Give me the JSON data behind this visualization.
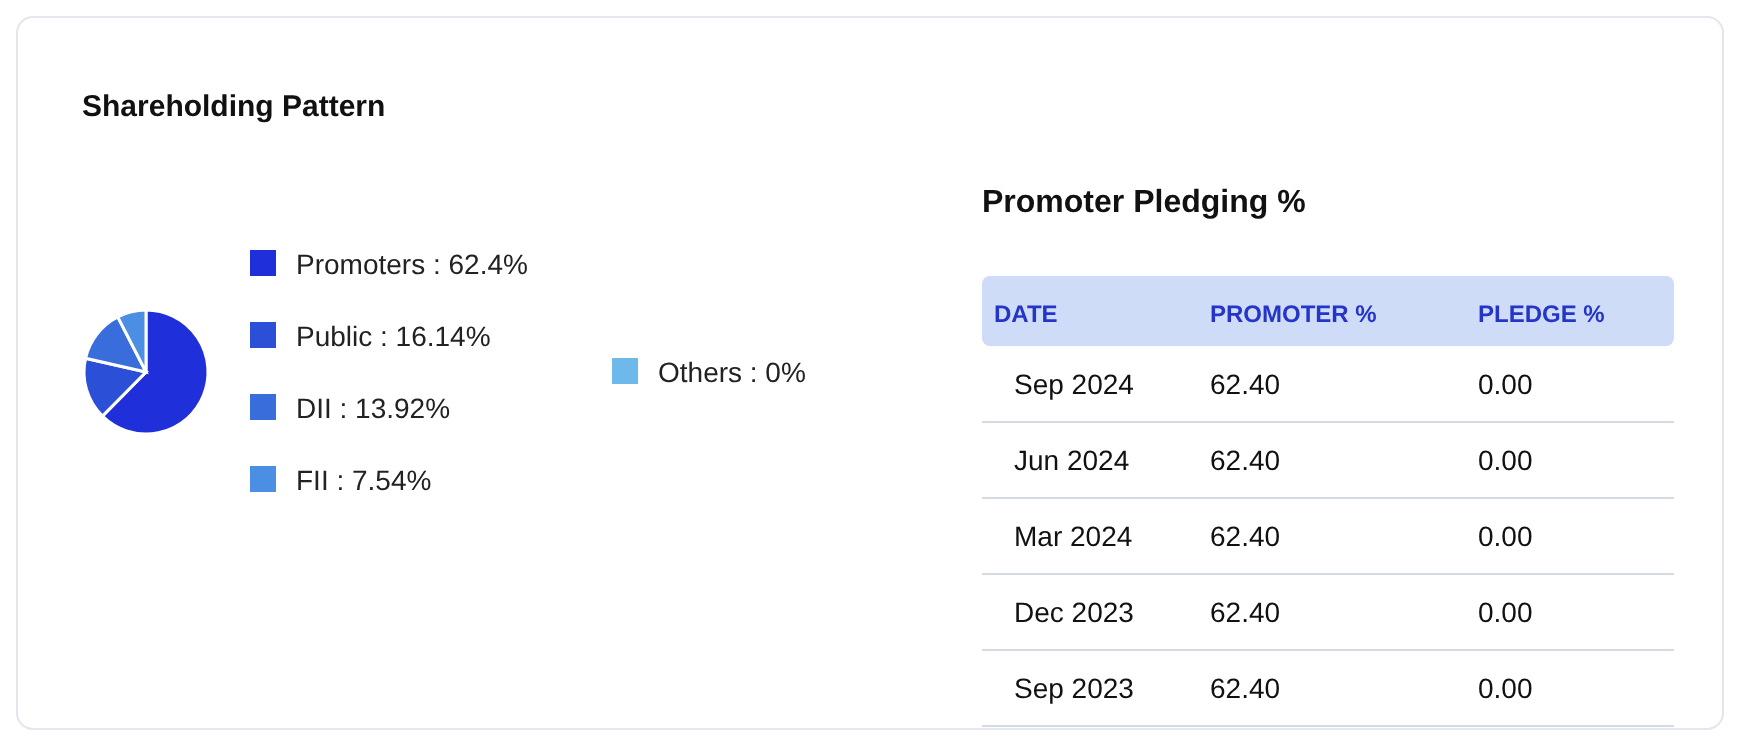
{
  "chart_data": [
    {
      "type": "pie",
      "title": "Shareholding Pattern",
      "categories": [
        "Promoters",
        "Public",
        "DII",
        "FII",
        "Others"
      ],
      "values": [
        62.4,
        16.14,
        13.92,
        7.54,
        0
      ],
      "value_labels": [
        "62.4%",
        "16.14%",
        "13.92%",
        "7.54%",
        "0%"
      ],
      "colors": [
        "#1f2fd9",
        "#2b4fd6",
        "#3a6ddc",
        "#4a8fe3",
        "#6cb9ea"
      ],
      "legend": "right"
    },
    {
      "type": "other",
      "title": "Promoter Pledging %",
      "annotations": [
        "DATE",
        "PROMOTER %",
        "PLEDGE %",
        "Sep 2024",
        "62.40",
        "0.00",
        "Jun 2024",
        "62.40",
        "0.00",
        "Mar 2024",
        "62.40",
        "0.00",
        "Dec 2023",
        "62.40",
        "0.00",
        "Sep 2023",
        "62.40",
        "0.00"
      ]
    }
  ]
}
